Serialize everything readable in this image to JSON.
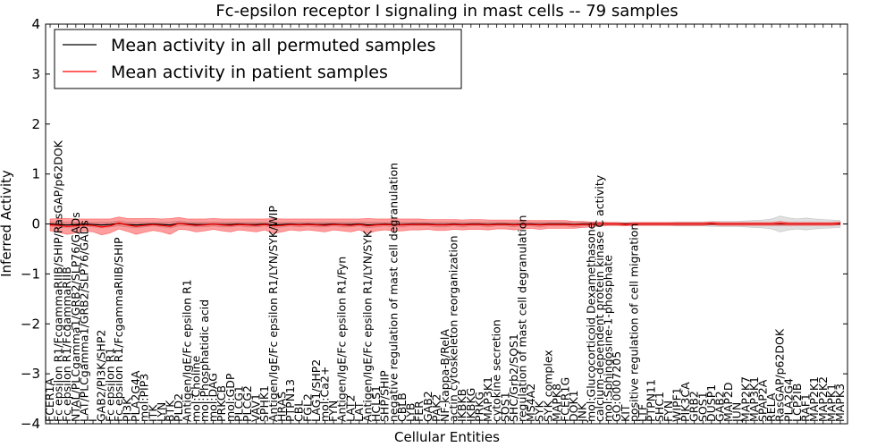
{
  "chart_data": {
    "type": "line",
    "title": "Fc-epsilon receptor I signaling in mast cells -- 79 samples",
    "xlabel": "Cellular Entities",
    "ylabel": "Inferred Activity",
    "ylim": [
      -4,
      4
    ],
    "yticks": [
      "4",
      "3",
      "2",
      "1",
      "0",
      "−1",
      "−2",
      "−3",
      "−4"
    ],
    "legend": {
      "position": "top-left",
      "entries": [
        {
          "label": "Mean activity in all permuted samples",
          "color": "#000000"
        },
        {
          "label": "Mean activity in patient samples",
          "color": "#ff0000"
        }
      ]
    },
    "categories": [
      "FCER1A",
      "Fc epsilon R1/FcgammaRIIB/SHIP/RasGAP/p62DOK",
      "Fc epsilon R1/FcgammaRIIB",
      "NTAL/PLCgamma1/GRB2/SLP76/GADs",
      "LAT/PLCgamma1/GRB2/SLP76/GADs",
      "I",
      "GAB2/PI3K/SHP2",
      "Fc epsilon R1",
      "Fc epsilon R1/FcgammaRIIB/SHIP",
      "PI3K",
      "PLA2G4A",
      "mol:PIP3",
      "ITK",
      "LYN",
      "BTK",
      "PLD2",
      "Antigen/IgE/Fc epsilon R1",
      "mol:Choline",
      "mol:Phosphatidic acid",
      "mol:DAG",
      "PRKCB",
      "mol:GDP",
      "PLCG1",
      "PLCG2",
      "VAV1",
      "SPHK1",
      "Antigen/IgE/Fc epsilon R1/LYN/SYK/WIP",
      "HRAS",
      "PTPN13",
      "CBL",
      "FGL2",
      "LAG1/SHP2",
      "mol:Ca2+",
      "FYN",
      "Antigen/IgE/Fc epsilon R1/Fyn",
      "LAT2",
      "LAT",
      "Antigen/IgE/Fc epsilon R1/LYN/SYK",
      "HCLS1",
      "SHP/SHIP",
      "negative regulation of mast cell degranulation",
      "CBLB",
      "LYB",
      "FER",
      "GAB2",
      "PAK2",
      "NF-kappa-B/RelA",
      "actin cytoskeleton reorganization",
      "IKBKB",
      "IKBKG",
      "PRKG",
      "MAP3K1",
      "cytokine secretion",
      "SOS1",
      "SHC/Grb2/SOS1",
      "regulation of mast cell degranulation",
      "MS4A2",
      "SYK",
      "SYK complex",
      "MAPK8",
      "FCER1G",
      "DOK1",
      "JNK",
      "mol:Glucocorticoid Dexamethasone",
      "calcium-dependent protein kinase C activity",
      "mol:Sphingosine-1-phosphate",
      "GO:0007205",
      "KIT",
      "positive regulation of cell migration",
      "LTF",
      "PTPN11",
      "SHC1",
      "FYN",
      "WIPF1",
      "PIK3CA",
      "GRB2",
      "SOS1",
      "DUSP1",
      "GAB2",
      "MAP2D",
      "JUN",
      "MAP2K7",
      "MAP3K1",
      "SPAP2A",
      "RELA",
      "RasGAP/p62DOK",
      "PLA2G4",
      "LCP2IB",
      "RAF1",
      "MAP2K1",
      "MAP2K2",
      "MAPK1",
      "MAPK3"
    ],
    "series": [
      {
        "name": "Mean activity in all permuted samples",
        "color": "#000000",
        "values": [
          0,
          -0.01,
          -0.02,
          -0.01,
          0,
          -0.01,
          -0.02,
          -0.01,
          0.01,
          -0.01,
          -0.02,
          -0.01,
          0,
          -0.01,
          -0.02,
          0.01,
          0,
          -0.01,
          -0.01,
          0,
          -0.01,
          -0.01,
          0,
          -0.01,
          -0.01,
          0,
          -0.02,
          -0.01,
          0,
          -0.01,
          0,
          -0.01,
          -0.01,
          0,
          -0.01,
          -0.01,
          0,
          -0.02,
          -0.01,
          0,
          -0.01,
          -0.01,
          0,
          0,
          0,
          -0.01,
          -0.01,
          0,
          -0.01,
          0,
          0,
          -0.01,
          0,
          0,
          -0.01,
          0,
          0,
          -0.01,
          0,
          0,
          0,
          -0.01,
          0,
          0,
          0,
          0,
          0,
          0,
          0,
          0,
          0,
          0,
          0,
          0,
          0,
          0,
          0,
          0,
          0,
          0,
          0,
          0,
          0,
          0,
          0,
          0,
          0,
          0,
          0,
          0,
          0,
          0,
          0
        ]
      },
      {
        "name": "Mean activity in patient samples",
        "color": "#ff0000",
        "values": [
          -0.02,
          -0.03,
          -0.05,
          -0.04,
          -0.02,
          -0.03,
          -0.06,
          -0.04,
          0.02,
          -0.02,
          -0.05,
          -0.03,
          -0.01,
          -0.03,
          -0.05,
          0.01,
          -0.01,
          -0.03,
          -0.02,
          0,
          -0.02,
          -0.03,
          -0.01,
          -0.02,
          -0.03,
          -0.01,
          -0.04,
          -0.03,
          -0.01,
          -0.02,
          -0.01,
          -0.02,
          -0.03,
          -0.01,
          -0.02,
          -0.03,
          -0.01,
          -0.04,
          -0.02,
          -0.01,
          -0.02,
          -0.02,
          -0.01,
          -0.01,
          -0.01,
          -0.02,
          -0.02,
          -0.01,
          -0.02,
          -0.01,
          -0.01,
          -0.02,
          -0.01,
          -0.01,
          -0.02,
          -0.01,
          -0.01,
          -0.02,
          -0.01,
          -0.01,
          -0.01,
          -0.02,
          -0.01,
          -0.01,
          0,
          0,
          0,
          -0.01,
          0,
          0,
          0,
          0,
          0,
          0,
          0,
          0,
          0,
          0.01,
          0,
          0,
          0,
          0,
          0,
          0,
          0,
          0.01,
          0,
          0,
          0,
          0,
          0,
          0,
          0.01
        ]
      }
    ],
    "bands": [
      {
        "name": "permuted samples spread",
        "color": "#999999",
        "halfwidth": [
          0.04,
          0.05,
          0.06,
          0.05,
          0.04,
          0.05,
          0.06,
          0.05,
          0.05,
          0.05,
          0.06,
          0.05,
          0.04,
          0.05,
          0.06,
          0.05,
          0.04,
          0.05,
          0.05,
          0.04,
          0.05,
          0.05,
          0.04,
          0.05,
          0.05,
          0.04,
          0.06,
          0.05,
          0.04,
          0.05,
          0.04,
          0.05,
          0.05,
          0.04,
          0.05,
          0.05,
          0.04,
          0.06,
          0.05,
          0.04,
          0.05,
          0.05,
          0.04,
          0.04,
          0.04,
          0.05,
          0.05,
          0.04,
          0.05,
          0.04,
          0.04,
          0.05,
          0.04,
          0.04,
          0.05,
          0.04,
          0.04,
          0.05,
          0.04,
          0.04,
          0.04,
          0.05,
          0.04,
          0.04,
          0.03,
          0.03,
          0.03,
          0.03,
          0.03,
          0.03,
          0.03,
          0.03,
          0.03,
          0.04,
          0.04,
          0.04,
          0.04,
          0.05,
          0.05,
          0.05,
          0.05,
          0.06,
          0.07,
          0.08,
          0.1,
          0.16,
          0.12,
          0.1,
          0.12,
          0.1,
          0.09,
          0.08,
          0.07
        ]
      },
      {
        "name": "patient samples spread",
        "color": "#ff0000",
        "halfwidth": [
          0.12,
          0.14,
          0.16,
          0.14,
          0.12,
          0.13,
          0.16,
          0.14,
          0.12,
          0.13,
          0.16,
          0.14,
          0.12,
          0.13,
          0.16,
          0.12,
          0.11,
          0.13,
          0.12,
          0.11,
          0.12,
          0.13,
          0.11,
          0.12,
          0.13,
          0.11,
          0.15,
          0.13,
          0.11,
          0.12,
          0.11,
          0.12,
          0.13,
          0.11,
          0.12,
          0.13,
          0.11,
          0.15,
          0.12,
          0.11,
          0.12,
          0.12,
          0.11,
          0.11,
          0.1,
          0.11,
          0.11,
          0.1,
          0.1,
          0.1,
          0.1,
          0.1,
          0.09,
          0.09,
          0.1,
          0.09,
          0.08,
          0.09,
          0.08,
          0.08,
          0.08,
          0.07,
          0.06,
          0.05,
          0.04,
          0.03,
          0.03,
          0.03,
          0.03,
          0.03,
          0.03,
          0.03,
          0.03,
          0.03,
          0.03,
          0.03,
          0.03,
          0.03,
          0.03,
          0.03,
          0.03,
          0.03,
          0.03,
          0.03,
          0.03,
          0.04,
          0.03,
          0.03,
          0.03,
          0.03,
          0.03,
          0.03,
          0.03
        ]
      }
    ]
  }
}
